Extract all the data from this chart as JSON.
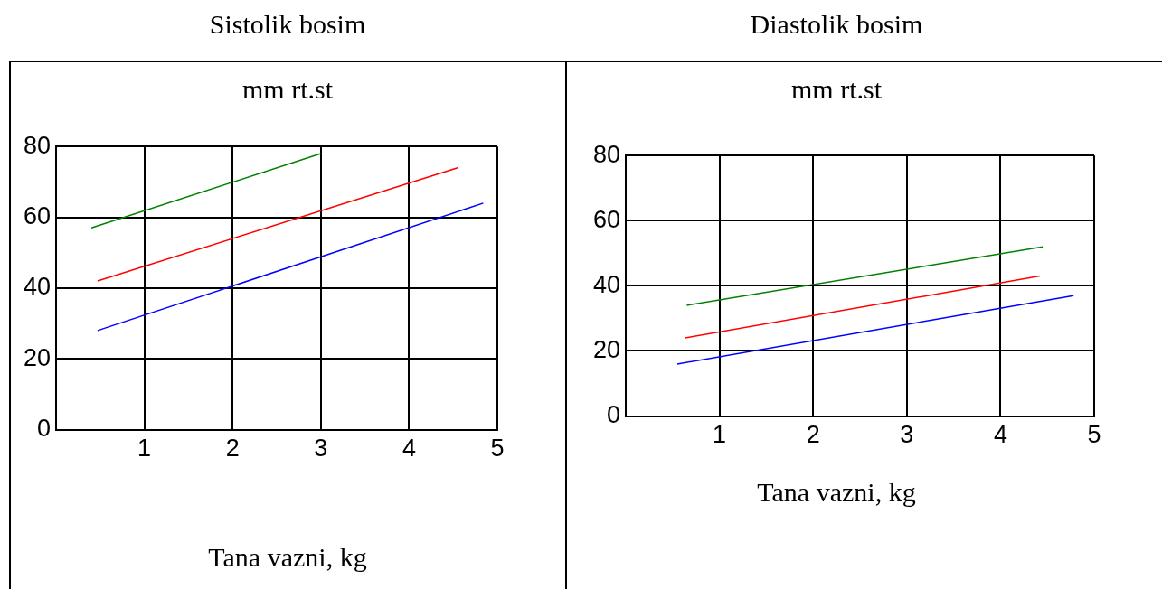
{
  "chart_data": [
    {
      "type": "line",
      "title": "Sistolik bosim",
      "ylabel": "mm rt.st",
      "xlabel": "Tana vazni, kg",
      "series": [
        {
          "color": "#008000",
          "x": [
            0.4,
            3.0
          ],
          "values": [
            57,
            78
          ]
        },
        {
          "color": "#ff0000",
          "x": [
            0.47,
            4.55
          ],
          "values": [
            42,
            74
          ]
        },
        {
          "color": "#0000ff",
          "x": [
            0.47,
            4.84
          ],
          "values": [
            28,
            64
          ]
        }
      ],
      "xlim": [
        0,
        5
      ],
      "xticks": [
        {
          "value": 0,
          "label": null
        },
        1,
        2,
        3,
        4,
        5
      ],
      "ylim": [
        0,
        80
      ],
      "yticks": [
        0,
        20,
        40,
        60,
        80
      ],
      "grid": true,
      "legend": false,
      "marker": "none",
      "line_style": "solid"
    },
    {
      "type": "line",
      "title": "Diastolik bosim",
      "ylabel": "mm rt.st",
      "xlabel": "Tana vazni, kg",
      "series": [
        {
          "color": "#008000",
          "x": [
            0.65,
            4.45
          ],
          "values": [
            34,
            52
          ]
        },
        {
          "color": "#ff0000",
          "x": [
            0.63,
            4.42
          ],
          "values": [
            24,
            43
          ]
        },
        {
          "color": "#0000ff",
          "x": [
            0.55,
            4.78
          ],
          "values": [
            16,
            37
          ]
        }
      ],
      "xlim": [
        0,
        5
      ],
      "xticks": [
        {
          "value": 0,
          "label": null
        },
        1,
        2,
        3,
        4,
        5
      ],
      "ylim": [
        0,
        80
      ],
      "yticks": [
        0,
        20,
        40,
        60,
        80
      ],
      "grid": true,
      "legend": false,
      "marker": "none",
      "line_style": "solid"
    }
  ]
}
